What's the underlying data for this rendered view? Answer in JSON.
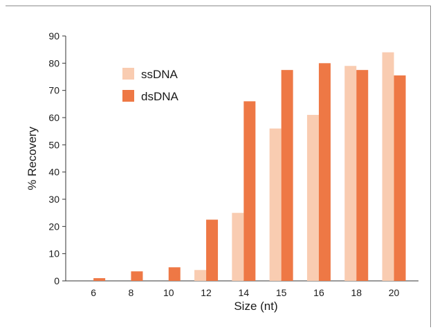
{
  "chart_data": {
    "type": "bar",
    "categories": [
      "6",
      "8",
      "10",
      "12",
      "14",
      "15",
      "16",
      "18",
      "20"
    ],
    "series": [
      {
        "name": "ssDNA",
        "color": "#f9ccb1",
        "values": [
          0,
          0,
          0,
          4,
          25,
          56,
          61,
          79,
          84
        ]
      },
      {
        "name": "dsDNA",
        "color": "#ee7845",
        "values": [
          1,
          3.5,
          5,
          22.5,
          66,
          77.5,
          80,
          77.5,
          75.5
        ]
      }
    ],
    "xlabel": "Size (nt)",
    "ylabel": "% Recovery",
    "ylim": [
      0,
      90
    ],
    "yticks": [
      0,
      10,
      20,
      30,
      40,
      50,
      60,
      70,
      80,
      90
    ],
    "grid": false,
    "legend_position": "top-left"
  }
}
